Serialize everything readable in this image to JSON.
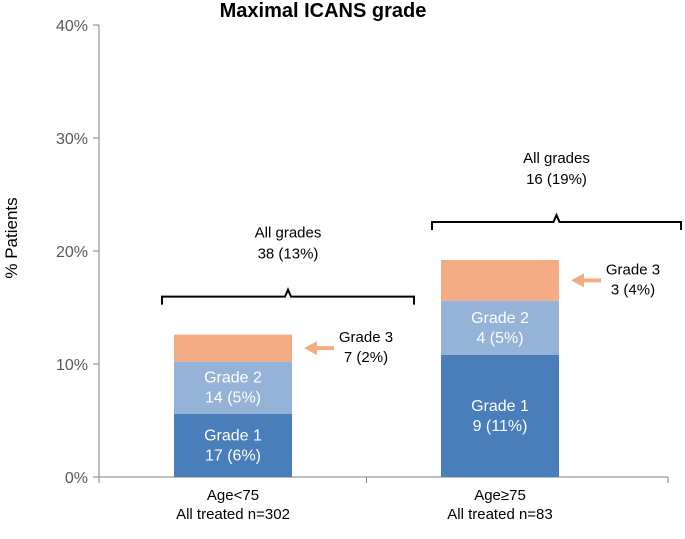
{
  "chart_data": {
    "type": "bar",
    "stacked": true,
    "title": "Maximal ICANS grade",
    "ylabel": "% Patients",
    "ylim": [
      0,
      40
    ],
    "yticks": [
      "0%",
      "10%",
      "20%",
      "30%",
      "40%"
    ],
    "categories": [
      {
        "line1": "Age<75",
        "line2": "All treated n=302"
      },
      {
        "line1": "Age≥75",
        "line2": "All treated n=83"
      }
    ],
    "series": [
      {
        "color": "#4a7ebb",
        "values": [
          5.6,
          10.8
        ],
        "labels": [
          [
            "Grade 1",
            "17 (6%)"
          ],
          [
            "Grade 1",
            "9 (11%)"
          ]
        ]
      },
      {
        "color": "#95b3d7",
        "values": [
          4.6,
          4.8
        ],
        "labels": [
          [
            "Grade 2",
            "14 (5%)"
          ],
          [
            "Grade 2",
            "4 (5%)"
          ]
        ]
      },
      {
        "color": "#f4ac84",
        "values": [
          2.4,
          3.6
        ],
        "labels": [
          [
            "Grade 3",
            "7 (2%)"
          ],
          [
            "Grade 3",
            "3 (4%)"
          ]
        ]
      }
    ],
    "totals": [
      {
        "line1": "All grades",
        "line2": "38 (13%)"
      },
      {
        "line1": "All grades",
        "line2": "16 (19%)"
      }
    ],
    "grid": false,
    "legend": "none"
  }
}
